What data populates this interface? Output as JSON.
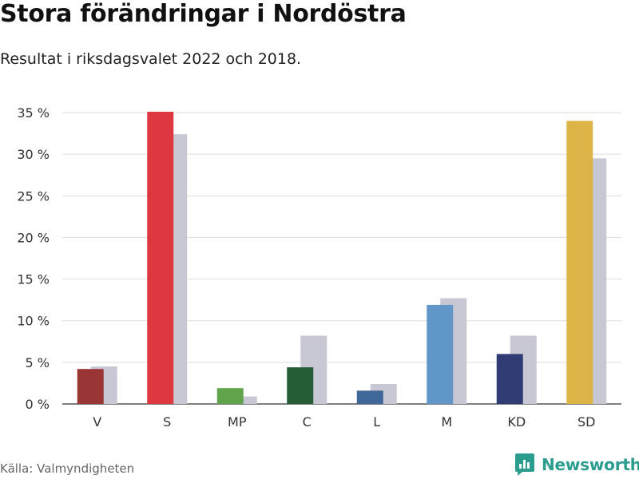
{
  "title": "Stora förändringar i Nordöstra",
  "subtitle": "Resultat i riksdagsvalet 2022 och 2018.",
  "source": "Källa: Valmyndigheten",
  "brand": {
    "name": "Newsworthy",
    "icon": "newsworthy-logo-icon",
    "color": "#2a9d8f"
  },
  "chart_data": {
    "type": "bar",
    "categories": [
      "V",
      "S",
      "MP",
      "C",
      "L",
      "M",
      "KD",
      "SD"
    ],
    "series": [
      {
        "name": "2022",
        "values": [
          4.2,
          35.1,
          1.9,
          4.4,
          1.6,
          11.9,
          6.0,
          34.0
        ],
        "colors": [
          "#993535",
          "#dd3740",
          "#60a34b",
          "#255e36",
          "#3f6899",
          "#6097c8",
          "#313c74",
          "#ddb447"
        ]
      },
      {
        "name": "2018",
        "values": [
          4.5,
          32.4,
          0.9,
          8.2,
          2.4,
          12.7,
          8.2,
          29.5
        ],
        "color": "#c8c7d4"
      }
    ],
    "ylim": [
      0,
      35
    ],
    "yticks": [
      0,
      5,
      10,
      15,
      20,
      25,
      30,
      35
    ],
    "ytick_labels": [
      "0 %",
      "5 %",
      "10 %",
      "15 %",
      "20 %",
      "25 %",
      "30 %",
      "35 %"
    ],
    "grid": true,
    "xlabel": "",
    "ylabel": ""
  }
}
